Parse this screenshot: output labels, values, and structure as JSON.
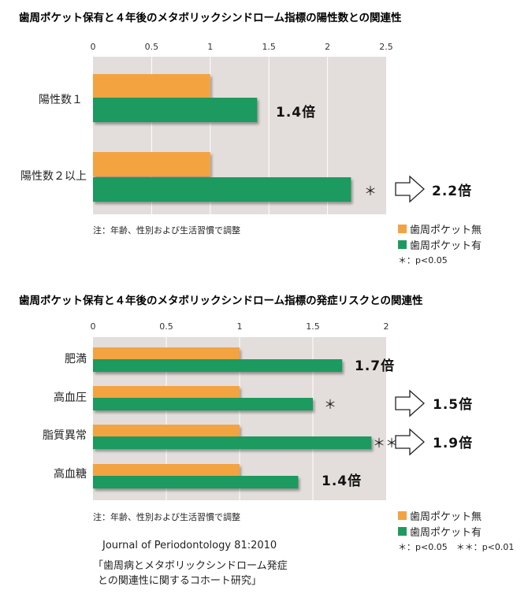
{
  "colors": {
    "without_pocket": "#F3A341",
    "with_pocket": "#1F9A5E",
    "plot_bg": "#E3DEDB",
    "grid": "#FFFFFF"
  },
  "chart_data": [
    {
      "type": "bar",
      "orientation": "horizontal",
      "title": "歯周ポケット保有と４年後のメタボリックシンドローム指標の陽性数との関連性",
      "categories": [
        "陽性数１",
        "陽性数２以上"
      ],
      "series": [
        {
          "name": "歯周ポケット無",
          "values": [
            1.0,
            1.0
          ]
        },
        {
          "name": "歯周ポケット有",
          "values": [
            1.4,
            2.2
          ]
        }
      ],
      "xlim": [
        0,
        2.5
      ],
      "xticks": [
        "0",
        "0.5",
        "1",
        "1.5",
        "2",
        "2.5"
      ],
      "ratio_labels": [
        "1.4倍",
        "2.2倍"
      ],
      "significance_marks": [
        "",
        "＊"
      ],
      "note": "注：年齢、性別および生活習慣で調整",
      "significance_legend": "＊：p<0.05",
      "grid": true
    },
    {
      "type": "bar",
      "orientation": "horizontal",
      "title": "歯周ポケット保有と４年後のメタボリックシンドローム指標の発症リスクとの関連性",
      "categories": [
        "肥満",
        "高血圧",
        "脂質異常",
        "高血糖"
      ],
      "series": [
        {
          "name": "歯周ポケット無",
          "values": [
            1.0,
            1.0,
            1.0,
            1.0
          ]
        },
        {
          "name": "歯周ポケット有",
          "values": [
            1.7,
            1.5,
            1.9,
            1.4
          ]
        }
      ],
      "xlim": [
        0,
        2
      ],
      "xticks": [
        "0",
        "0.5",
        "1",
        "1.5",
        "2"
      ],
      "ratio_labels": [
        "1.7倍",
        "1.5倍",
        "1.9倍",
        "1.4倍"
      ],
      "significance_marks": [
        "",
        "＊",
        "＊＊",
        ""
      ],
      "note": "注：年齢、性別および生活習慣で調整",
      "significance_legend": "＊：p<0.05　＊＊：p<0.01",
      "grid": true
    }
  ],
  "source": {
    "journal": "Journal of Periodontology 81:2010",
    "paper_line1": "「歯周病とメタボリックシンドローム発症",
    "paper_line2": "との関連性に関するコホート研究」"
  }
}
